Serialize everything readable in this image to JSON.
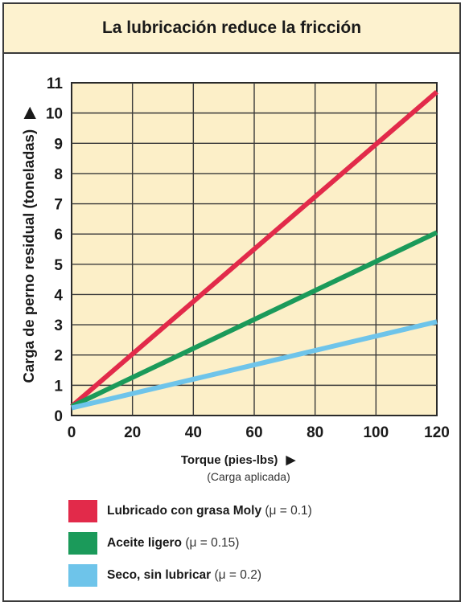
{
  "chart_data": {
    "type": "line",
    "title": "La lubricación reduce la fricción",
    "xlabel": "Torque (pies-lbs)",
    "xlabel_arrow": "▶",
    "xlabel_sub": "(Carga aplicada)",
    "ylabel": "Carga de perno residual (toneladas)",
    "ylabel_arrow": "▶",
    "xlim": [
      0,
      120
    ],
    "ylim": [
      0,
      11
    ],
    "xticks": [
      0,
      20,
      40,
      60,
      80,
      100,
      120
    ],
    "yticks": [
      0,
      1,
      2,
      3,
      4,
      5,
      6,
      7,
      8,
      9,
      10,
      11
    ],
    "grid": true,
    "legend_position": "bottom",
    "series": [
      {
        "name": "Lubricado con grasa Moly",
        "param": " (μ = 0.1)",
        "color": "#e22a4a",
        "x": [
          0,
          120
        ],
        "y": [
          0.3,
          10.7
        ]
      },
      {
        "name": "Aceite ligero",
        "param": " (μ = 0.15)",
        "color": "#1b9a5a",
        "x": [
          0,
          120
        ],
        "y": [
          0.3,
          6.05
        ]
      },
      {
        "name": "Seco, sin lubricar",
        "param": " (μ = 0.2)",
        "color": "#6ec4ea",
        "x": [
          0,
          120
        ],
        "y": [
          0.25,
          3.1
        ]
      }
    ]
  },
  "colors": {
    "plot_bg": "#fcefc8",
    "title_bg": "#fdf2cf",
    "grid": "#3a3a3a"
  }
}
